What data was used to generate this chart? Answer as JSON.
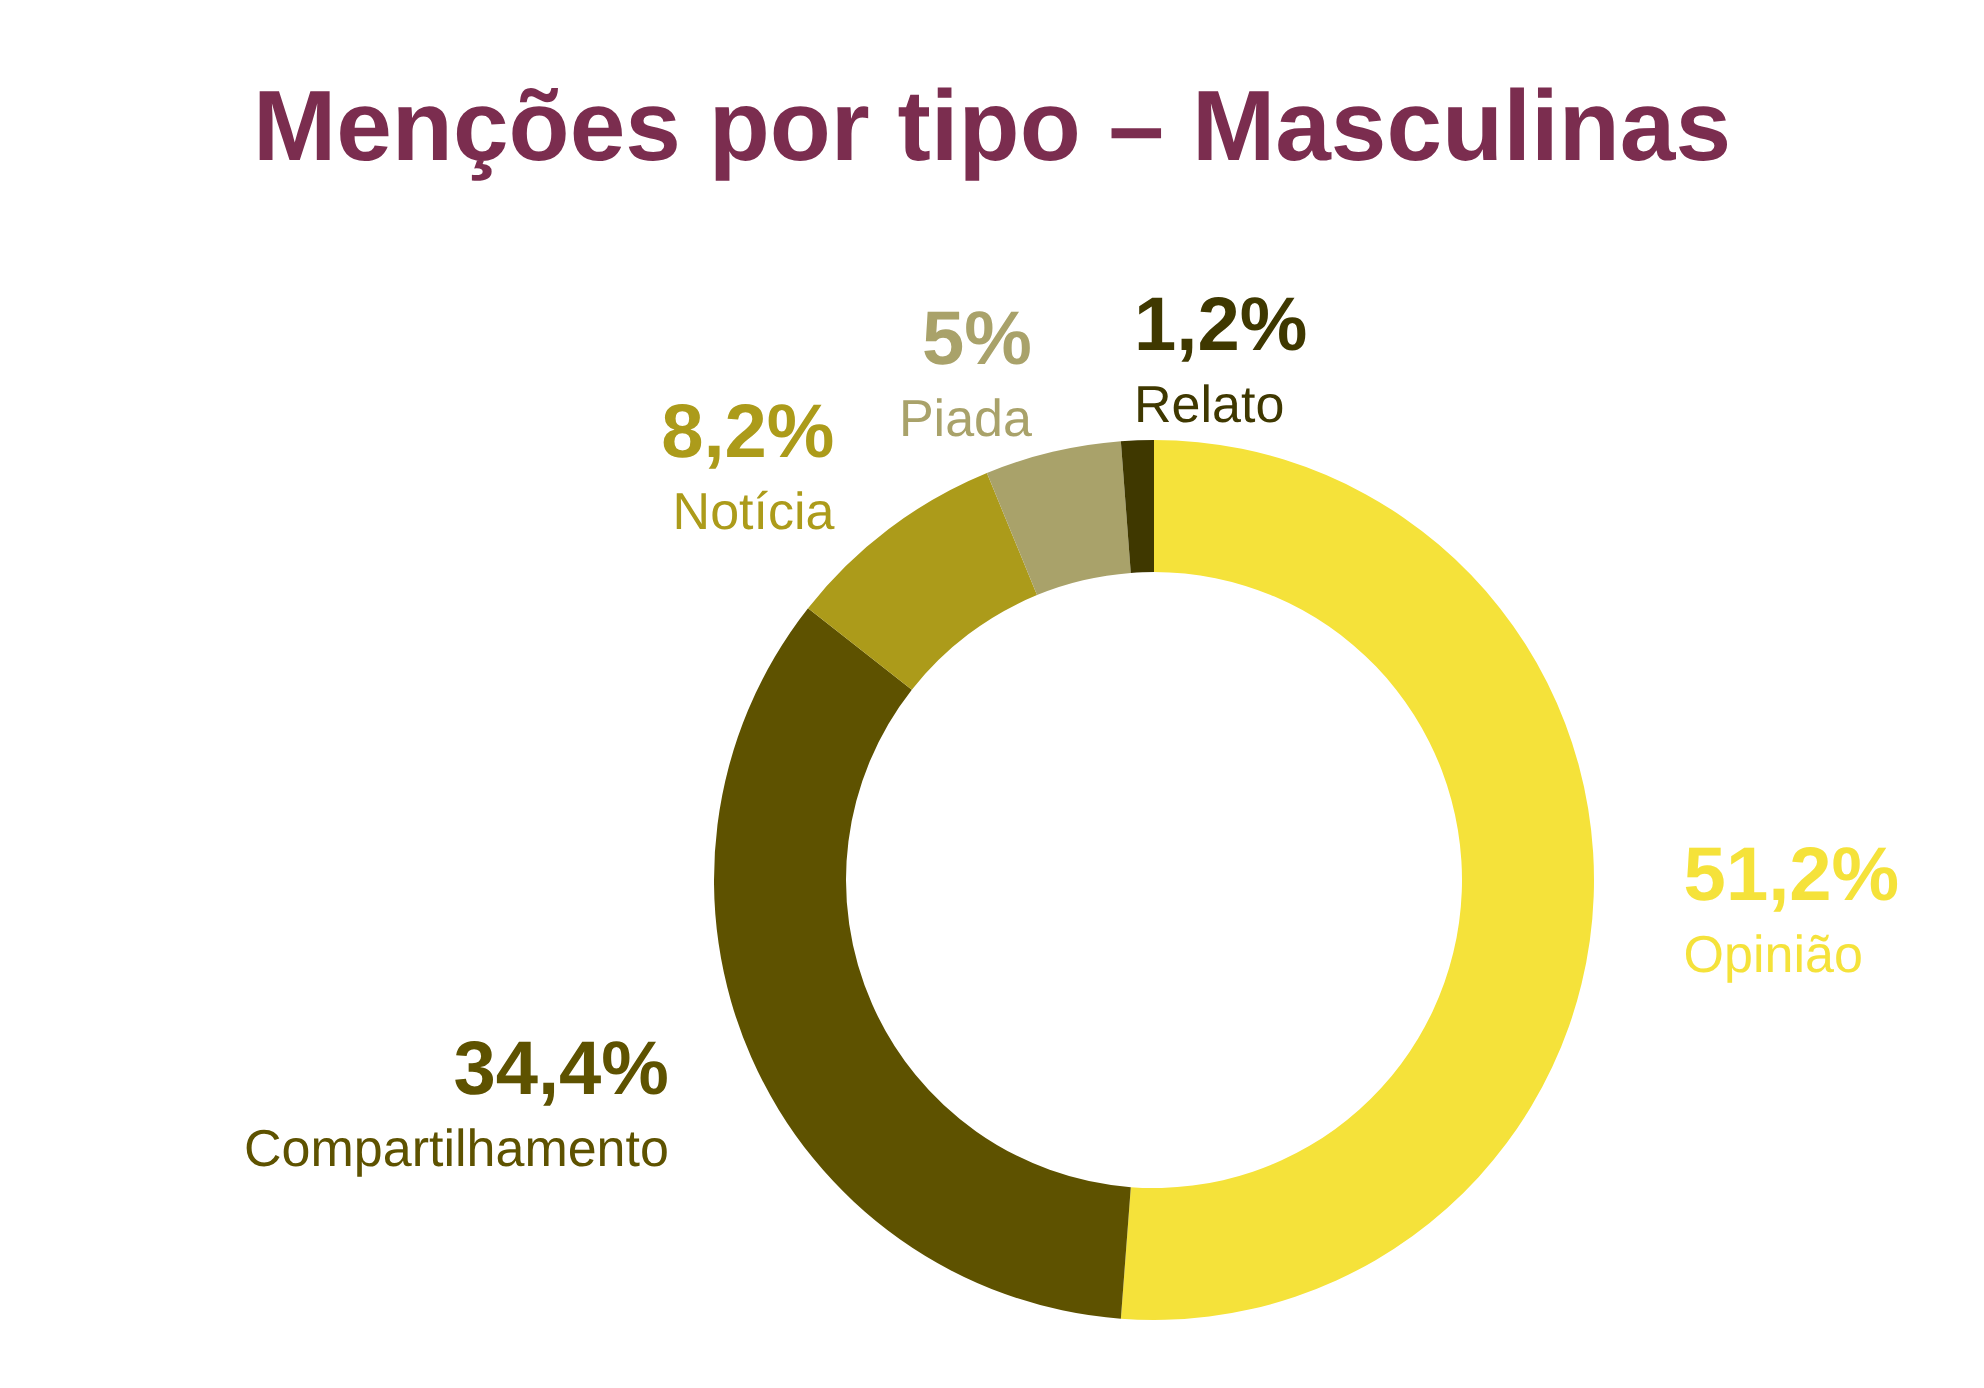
{
  "chart_data": {
    "type": "donut",
    "title": "Menções por tipo – Masculinas",
    "categories": [
      "Opinião",
      "Compartilhamento",
      "Notícia",
      "Piada",
      "Relato"
    ],
    "values": [
      51.2,
      34.4,
      8.2,
      5,
      1.2
    ],
    "colors": [
      "#f5e23a",
      "#5e5200",
      "#ac9b1a",
      "#a9a26a",
      "#3f3800"
    ],
    "value_labels": [
      "51,2%",
      "34,4%",
      "8,2%",
      "5%",
      "1,2%"
    ]
  }
}
